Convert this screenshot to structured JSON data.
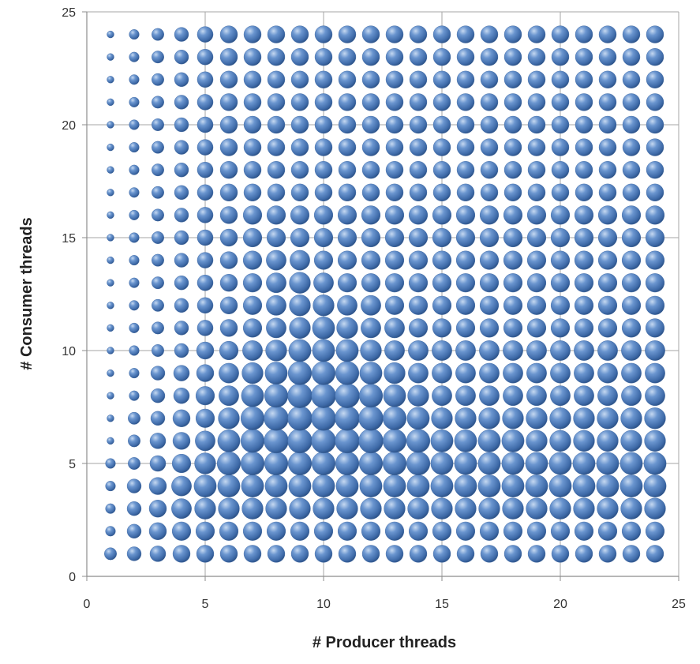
{
  "chart_data": {
    "type": "scatter",
    "subtype": "bubble",
    "title": "",
    "xlabel": "# Producer threads",
    "ylabel": "# Consumer threads",
    "xlim": [
      0,
      25
    ],
    "ylim": [
      0,
      25
    ],
    "xticks": [
      "0",
      "5",
      "10",
      "15",
      "20",
      "25"
    ],
    "yticks": [
      "0",
      "5",
      "10",
      "15",
      "20",
      "25"
    ],
    "grid": true,
    "legend": "none",
    "bubble_color": "#4f81bd",
    "producers": [
      1,
      2,
      3,
      4,
      5,
      6,
      7,
      8,
      9,
      10,
      11,
      12,
      13,
      14,
      15,
      16,
      17,
      18,
      19,
      20,
      21,
      22,
      23,
      24
    ],
    "consumers": [
      1,
      2,
      3,
      4,
      5,
      6,
      7,
      8,
      9,
      10,
      11,
      12,
      13,
      14,
      15,
      16,
      17,
      18,
      19,
      20,
      21,
      22,
      23,
      24
    ],
    "size_rows_consumer_1_to_24": [
      [
        3,
        4,
        5,
        6,
        6,
        6,
        6,
        6,
        6,
        6,
        6,
        6,
        6,
        6,
        6,
        6,
        6,
        6,
        6,
        6,
        6,
        6,
        6,
        6
      ],
      [
        2,
        4,
        6,
        7,
        7,
        7,
        7,
        7,
        7,
        7,
        7,
        7,
        7,
        7,
        7,
        7,
        7,
        7,
        7,
        7,
        7,
        7,
        7,
        7
      ],
      [
        2,
        4,
        6,
        8,
        9,
        9,
        9,
        9,
        9,
        9,
        9,
        9,
        9,
        9,
        9,
        9,
        9,
        9,
        9,
        9,
        9,
        9,
        9,
        9
      ],
      [
        2,
        4,
        6,
        8,
        10,
        10,
        10,
        10,
        10,
        10,
        10,
        10,
        10,
        10,
        10,
        10,
        10,
        10,
        10,
        10,
        10,
        10,
        10,
        10
      ],
      [
        2,
        3,
        5,
        7,
        9,
        11,
        11,
        11,
        11,
        11,
        11,
        11,
        11,
        11,
        10,
        10,
        10,
        10,
        10,
        10,
        10,
        10,
        10,
        10
      ],
      [
        1,
        3,
        5,
        6,
        8,
        10,
        11,
        12,
        12,
        12,
        12,
        12,
        11,
        11,
        10,
        10,
        10,
        10,
        9,
        9,
        9,
        9,
        9,
        9
      ],
      [
        1,
        3,
        4,
        6,
        7,
        9,
        11,
        12,
        12,
        12,
        12,
        12,
        11,
        10,
        9,
        9,
        9,
        9,
        9,
        9,
        9,
        9,
        9,
        9
      ],
      [
        1,
        2,
        4,
        5,
        7,
        8,
        10,
        11,
        12,
        12,
        12,
        11,
        10,
        9,
        8,
        8,
        8,
        8,
        8,
        8,
        8,
        8,
        8,
        8
      ],
      [
        1,
        2,
        4,
        5,
        6,
        8,
        9,
        10,
        11,
        11,
        11,
        10,
        9,
        8,
        8,
        8,
        8,
        8,
        8,
        8,
        8,
        8,
        8,
        8
      ],
      [
        1,
        2,
        3,
        4,
        6,
        7,
        8,
        9,
        10,
        10,
        10,
        9,
        8,
        8,
        8,
        8,
        8,
        8,
        8,
        8,
        8,
        8,
        8,
        8
      ],
      [
        1,
        2,
        3,
        4,
        5,
        6,
        7,
        8,
        9,
        10,
        9,
        8,
        8,
        7,
        7,
        7,
        7,
        7,
        7,
        7,
        7,
        7,
        7,
        7
      ],
      [
        1,
        2,
        3,
        4,
        5,
        6,
        7,
        8,
        9,
        9,
        8,
        8,
        7,
        7,
        7,
        7,
        7,
        7,
        7,
        7,
        7,
        7,
        7,
        7
      ],
      [
        1,
        2,
        3,
        4,
        5,
        6,
        7,
        8,
        9,
        8,
        7,
        7,
        7,
        7,
        7,
        7,
        7,
        7,
        7,
        7,
        7,
        7,
        7,
        7
      ],
      [
        1,
        2,
        3,
        4,
        5,
        6,
        7,
        8,
        8,
        7,
        7,
        7,
        7,
        7,
        7,
        7,
        7,
        7,
        7,
        7,
        7,
        7,
        7,
        7
      ],
      [
        1,
        2,
        3,
        4,
        5,
        6,
        7,
        7,
        7,
        7,
        7,
        7,
        7,
        7,
        7,
        7,
        7,
        7,
        7,
        7,
        7,
        7,
        7,
        7
      ],
      [
        1,
        2,
        3,
        4,
        5,
        6,
        7,
        7,
        7,
        7,
        7,
        7,
        7,
        7,
        7,
        7,
        7,
        7,
        7,
        7,
        7,
        7,
        7,
        7
      ],
      [
        1,
        2,
        3,
        4,
        5,
        6,
        6,
        6,
        6,
        6,
        6,
        6,
        6,
        6,
        6,
        6,
        6,
        6,
        6,
        6,
        6,
        6,
        6,
        6
      ],
      [
        1,
        2,
        3,
        4,
        5,
        6,
        6,
        6,
        6,
        6,
        6,
        6,
        6,
        6,
        6,
        6,
        6,
        6,
        6,
        6,
        6,
        6,
        6,
        6
      ],
      [
        1,
        2,
        3,
        4,
        5,
        6,
        6,
        6,
        6,
        6,
        6,
        6,
        6,
        6,
        6,
        6,
        6,
        6,
        6,
        6,
        6,
        6,
        6,
        6
      ],
      [
        1,
        2,
        3,
        4,
        5,
        6,
        6,
        6,
        6,
        6,
        6,
        6,
        6,
        6,
        6,
        6,
        6,
        6,
        6,
        6,
        6,
        6,
        6,
        6
      ],
      [
        1,
        2,
        3,
        4,
        5,
        6,
        6,
        6,
        6,
        6,
        6,
        6,
        6,
        6,
        6,
        6,
        6,
        6,
        6,
        6,
        6,
        6,
        6,
        6
      ],
      [
        1,
        2,
        3,
        4,
        5,
        6,
        6,
        6,
        6,
        6,
        6,
        6,
        6,
        6,
        6,
        6,
        6,
        6,
        6,
        6,
        6,
        6,
        6,
        6
      ],
      [
        1,
        2,
        3,
        4,
        5,
        6,
        6,
        6,
        6,
        6,
        6,
        6,
        6,
        6,
        6,
        6,
        6,
        6,
        6,
        6,
        6,
        6,
        6,
        6
      ],
      [
        1,
        2,
        3,
        4,
        5,
        6,
        6,
        6,
        6,
        6,
        6,
        6,
        6,
        6,
        6,
        6,
        6,
        6,
        6,
        6,
        6,
        6,
        6,
        6
      ]
    ]
  }
}
